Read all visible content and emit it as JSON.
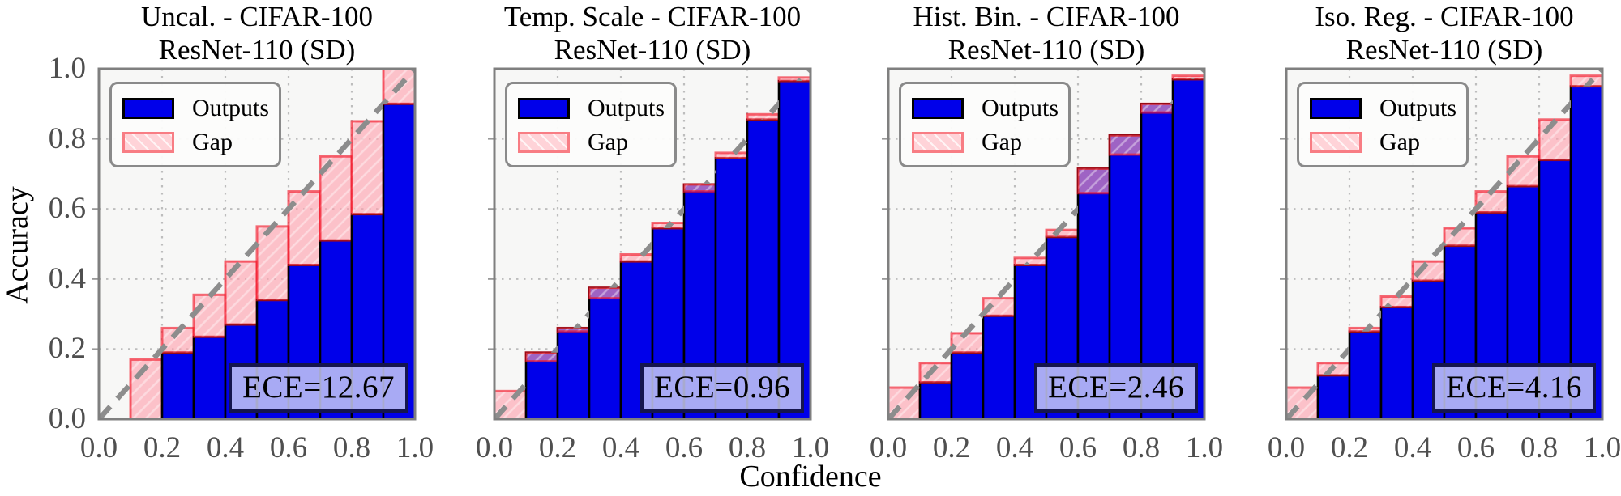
{
  "figure": {
    "xlabel": "Confidence",
    "ylabel": "Accuracy",
    "background": "#ffffff"
  },
  "legend": {
    "outputs": "Outputs",
    "gap": "Gap"
  },
  "axes": {
    "x_tick_labels": [
      "0.0",
      "0.2",
      "0.4",
      "0.6",
      "0.8",
      "1.0"
    ],
    "y_tick_labels": [
      "0.0",
      "0.2",
      "0.4",
      "0.6",
      "0.8",
      "1.0"
    ],
    "xlim": [
      0,
      1
    ],
    "ylim": [
      0,
      1
    ],
    "grid": "dotted at 0.2 steps",
    "reference_line": "y=x dashed gray diagonal"
  },
  "style": {
    "outputs_fill": "#0000ea",
    "outputs_edge": "#000000",
    "gap_fill": "rgba(255,160,172,0.62)",
    "gap_edge": "rgba(242,16,34,0.62)",
    "hatch_line": "rgba(255,255,255,0.40)",
    "plot_bg": "#f7f7f6",
    "grid_color": "#bdbdbd",
    "diagonal_color": "#8d8d8d",
    "frame_color": "#7f7f7f",
    "tick_color": "#999999",
    "ece_box_fill": "rgba(200,202,246,0.84)",
    "ece_box_edge": "#15154e"
  },
  "chart_data": [
    {
      "type": "bar",
      "title": "Uncal. - CIFAR-100",
      "subtitle": "ResNet-110 (SD)",
      "ece_label": "ECE=12.67",
      "xlabel": "Confidence",
      "ylabel": "Accuracy",
      "xlim": [
        0,
        1
      ],
      "ylim": [
        0,
        1
      ],
      "bin_edges": [
        0,
        0.1,
        0.2,
        0.3,
        0.4,
        0.5,
        0.6,
        0.7,
        0.8,
        0.9,
        1.0
      ],
      "series": [
        {
          "name": "Outputs (accuracy per bin)",
          "values": [
            0,
            0,
            0.19,
            0.235,
            0.27,
            0.34,
            0.44,
            0.51,
            0.585,
            0.9
          ]
        },
        {
          "name": "Gap (avg confidence per bin)",
          "values": [
            0,
            0.17,
            0.26,
            0.355,
            0.45,
            0.55,
            0.65,
            0.75,
            0.85,
            1.0
          ]
        }
      ]
    },
    {
      "type": "bar",
      "title": "Temp. Scale - CIFAR-100",
      "subtitle": "ResNet-110 (SD)",
      "ece_label": "ECE=0.96",
      "xlabel": "Confidence",
      "ylabel": "Accuracy",
      "xlim": [
        0,
        1
      ],
      "ylim": [
        0,
        1
      ],
      "bin_edges": [
        0,
        0.1,
        0.2,
        0.3,
        0.4,
        0.5,
        0.6,
        0.7,
        0.8,
        0.9,
        1.0
      ],
      "series": [
        {
          "name": "Outputs (accuracy per bin)",
          "values": [
            0,
            0.19,
            0.26,
            0.375,
            0.45,
            0.545,
            0.67,
            0.745,
            0.855,
            0.965
          ]
        },
        {
          "name": "Gap (avg confidence per bin)",
          "values": [
            0.08,
            0.165,
            0.25,
            0.345,
            0.47,
            0.56,
            0.65,
            0.76,
            0.87,
            0.975
          ]
        }
      ]
    },
    {
      "type": "bar",
      "title": "Hist. Bin. - CIFAR-100",
      "subtitle": "ResNet-110 (SD)",
      "ece_label": "ECE=2.46",
      "xlabel": "Confidence",
      "ylabel": "Accuracy",
      "xlim": [
        0,
        1
      ],
      "ylim": [
        0,
        1
      ],
      "bin_edges": [
        0,
        0.1,
        0.2,
        0.3,
        0.4,
        0.5,
        0.6,
        0.7,
        0.8,
        0.9,
        1.0
      ],
      "series": [
        {
          "name": "Outputs (accuracy per bin)",
          "values": [
            0,
            0.105,
            0.19,
            0.295,
            0.44,
            0.52,
            0.715,
            0.81,
            0.9,
            0.97
          ]
        },
        {
          "name": "Gap (avg confidence per bin)",
          "values": [
            0.09,
            0.16,
            0.245,
            0.345,
            0.46,
            0.54,
            0.645,
            0.755,
            0.875,
            0.98
          ]
        }
      ]
    },
    {
      "type": "bar",
      "title": "Iso. Reg. - CIFAR-100",
      "subtitle": "ResNet-110 (SD)",
      "ece_label": "ECE=4.16",
      "xlabel": "Confidence",
      "ylabel": "Accuracy",
      "xlim": [
        0,
        1
      ],
      "ylim": [
        0,
        1
      ],
      "bin_edges": [
        0,
        0.1,
        0.2,
        0.3,
        0.4,
        0.5,
        0.6,
        0.7,
        0.8,
        0.9,
        1.0
      ],
      "series": [
        {
          "name": "Outputs (accuracy per bin)",
          "values": [
            0,
            0.125,
            0.25,
            0.32,
            0.395,
            0.495,
            0.59,
            0.665,
            0.74,
            0.95
          ]
        },
        {
          "name": "Gap (avg confidence per bin)",
          "values": [
            0.09,
            0.16,
            0.26,
            0.35,
            0.45,
            0.545,
            0.65,
            0.75,
            0.855,
            0.98
          ]
        }
      ]
    }
  ]
}
